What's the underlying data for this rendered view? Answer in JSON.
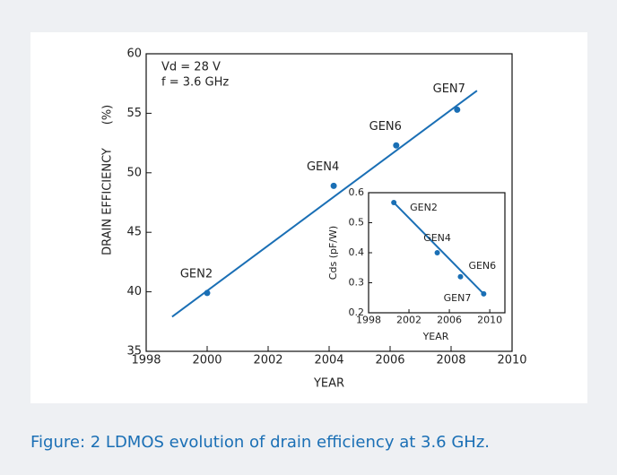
{
  "chart_data": [
    {
      "type": "scatter",
      "annotations": [
        "Vd = 28 V",
        "f = 3.6 GHz"
      ],
      "xlabel": "YEAR",
      "ylabel": "DRAIN EFFICIENCY",
      "ylabel_unit": "(%)",
      "color": "#1a6fb5",
      "labels": [
        "GEN2",
        "GEN4",
        "GEN6",
        "GEN7"
      ],
      "x": [
        2000,
        2004.15,
        2006.2,
        2008.2
      ],
      "values": [
        39.9,
        48.9,
        52.3,
        55.3
      ],
      "fit": {
        "x": [
          1998.85,
          2008.85
        ],
        "values": [
          37.9,
          56.9
        ]
      },
      "xlim": [
        1998,
        2010
      ],
      "xticks": [
        1998,
        2000,
        2002,
        2004,
        2006,
        2008,
        2010
      ],
      "ylim": [
        35,
        60
      ],
      "yticks": [
        35,
        40,
        45,
        50,
        55,
        60
      ]
    },
    {
      "type": "scatter",
      "xlabel": "YEAR",
      "ylabel": "Cds (pF/W)",
      "color": "#1a6fb5",
      "labels": [
        "GEN2",
        "GEN4",
        "GEN6",
        "GEN7"
      ],
      "x": [
        2000.5,
        2004.8,
        2007.1,
        2009.4
      ],
      "values": [
        0.567,
        0.4,
        0.32,
        0.263
      ],
      "fit": {
        "x": [
          2000.5,
          2009.4
        ],
        "values": [
          0.567,
          0.263
        ]
      },
      "xlim": [
        1998,
        2011.5
      ],
      "xticks": [
        1998,
        2002,
        2006,
        2010
      ],
      "ylim": [
        0.2,
        0.6
      ],
      "yticks": [
        0.2,
        0.3,
        0.4,
        0.5,
        0.6
      ]
    }
  ],
  "caption": "Figure: 2 LDMOS evolution of drain efficiency at 3.6 GHz."
}
